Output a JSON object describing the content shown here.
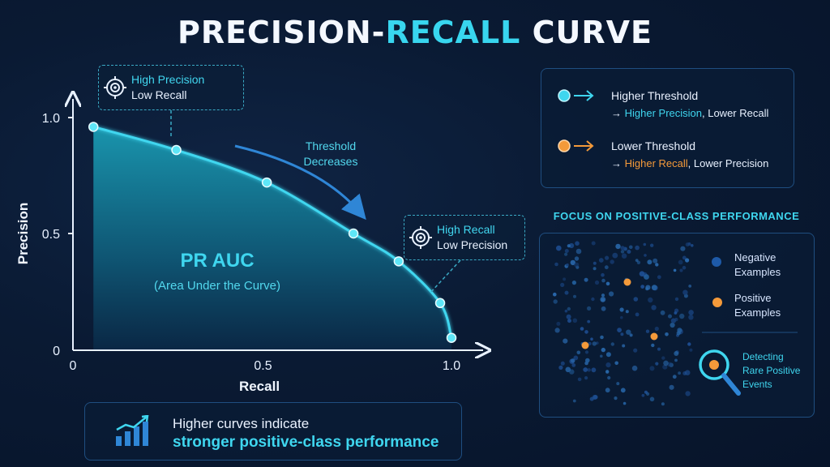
{
  "title": {
    "part1": "PRECISION-",
    "part2": "RECALL",
    "part3": "CURVE"
  },
  "chart_data": {
    "type": "line",
    "title": "PRECISION-RECALL CURVE",
    "xlabel": "Recall",
    "ylabel": "Precision",
    "xlim": [
      0,
      1.0
    ],
    "ylim": [
      0,
      1.0
    ],
    "x_ticks": [
      "0",
      "0.5",
      "1.0"
    ],
    "y_ticks": [
      "0",
      "0.5",
      "1.0"
    ],
    "series": [
      {
        "x": [
          0.05,
          0.27,
          0.51,
          0.74,
          0.86,
          0.97,
          1.0
        ],
        "y": [
          0.96,
          0.86,
          0.72,
          0.5,
          0.38,
          0.2,
          0.05
        ]
      }
    ],
    "area_label": "PR AUC",
    "area_sublabel": "(Area Under the Curve)",
    "direction_label": "Threshold\nDecreases",
    "accent_color": "#3fd6ef",
    "grid": false
  },
  "callouts": {
    "top": {
      "line1": "High Precision",
      "line2": "Low Recall",
      "icon": "target-icon"
    },
    "right": {
      "line1": "High Recall",
      "line2": "Low Precision",
      "icon": "target-icon"
    }
  },
  "threshold_legend": {
    "higher": {
      "head": "Higher Threshold",
      "prefix": "→ ",
      "highlight": "Higher Precision",
      "rest": ", Lower Recall",
      "color": "#3fd6ef"
    },
    "lower": {
      "head": "Lower Threshold",
      "prefix": "→ ",
      "highlight": "Higher Recall",
      "rest": ", Lower Precision",
      "color": "#f49a3a"
    }
  },
  "focus_panel": {
    "title": "FOCUS ON POSITIVE-CLASS PERFORMANCE",
    "negative": {
      "line1": "Negative",
      "line2": "Examples",
      "color": "#1e5aa8"
    },
    "positive": {
      "line1": "Positive",
      "line2": "Examples",
      "color": "#f49a3a"
    },
    "detect": {
      "line1": "Detecting",
      "line2": "Rare Positive",
      "line3": "Events",
      "icon": "magnifier-icon"
    }
  },
  "bottom_note": {
    "line1": "Higher curves indicate",
    "line2": "stronger positive-class performance",
    "icon": "bar-chart-trend-icon"
  }
}
